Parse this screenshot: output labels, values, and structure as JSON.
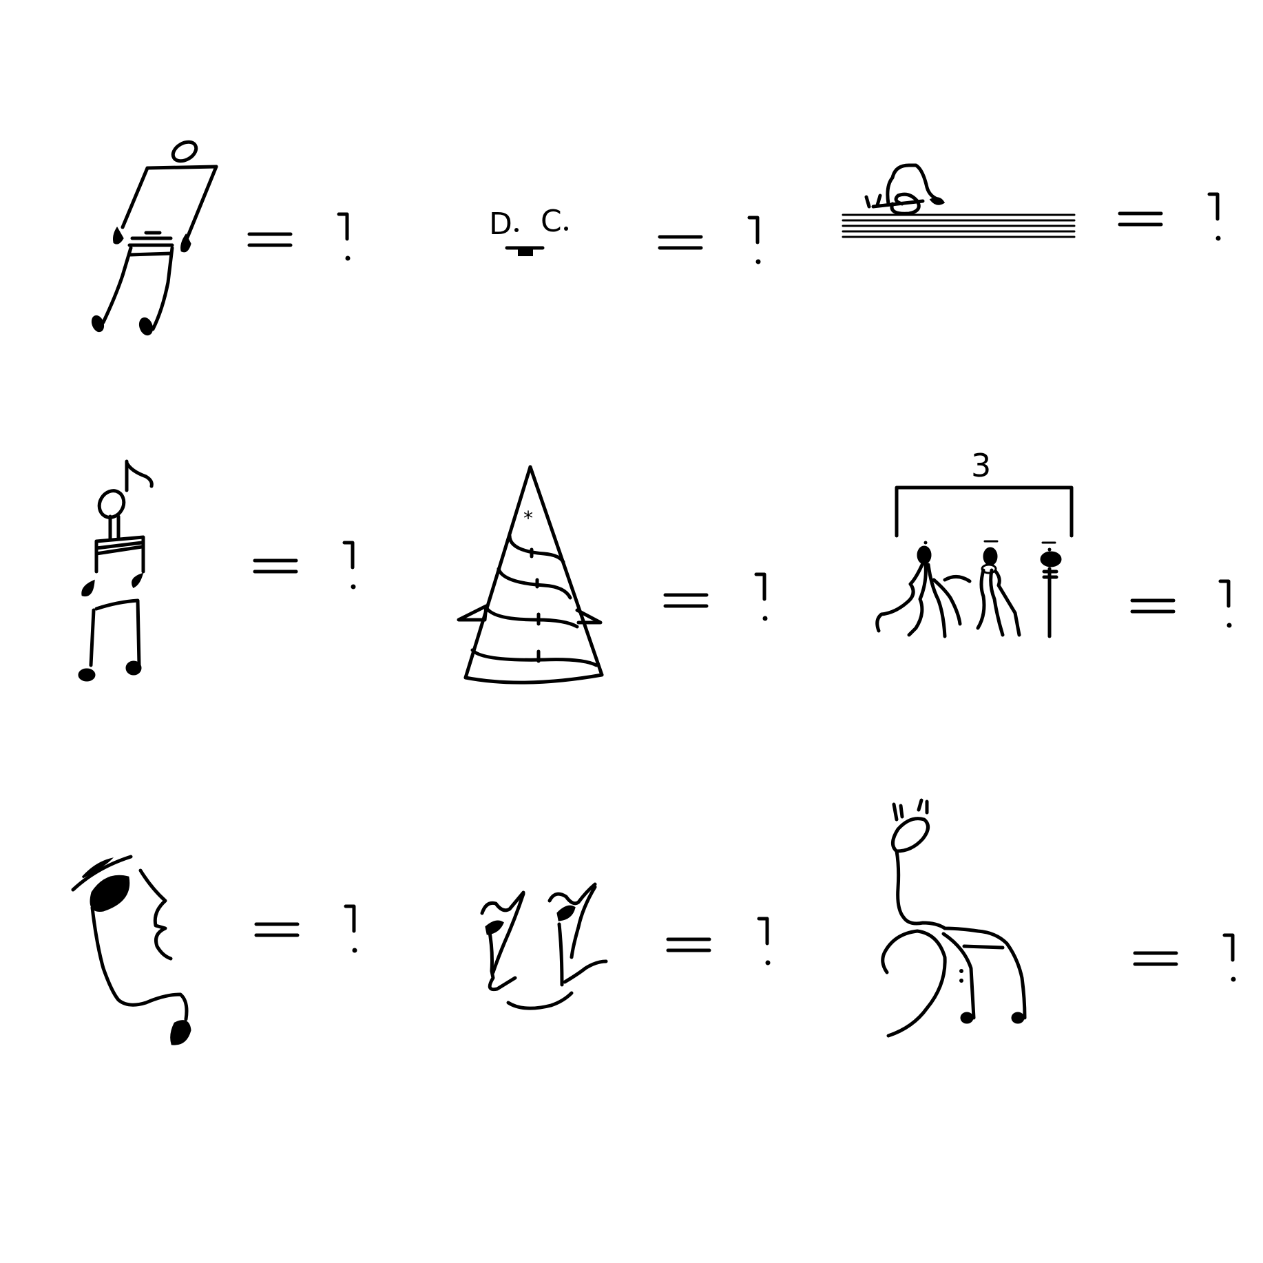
{
  "puzzle": {
    "equals_sign": "=",
    "question_mark": "?",
    "tuplet_number": "3",
    "dc_letters": [
      "D",
      "C"
    ],
    "items": [
      {
        "id": "sixteenth-notes-figure",
        "row": 1,
        "col": 1
      },
      {
        "id": "da-capo-face",
        "row": 1,
        "col": 2
      },
      {
        "id": "staff-snail",
        "row": 1,
        "col": 3
      },
      {
        "id": "note-figure-with-flag",
        "row": 2,
        "col": 1
      },
      {
        "id": "party-hat-tree",
        "row": 2,
        "col": 2
      },
      {
        "id": "triplet-bracket-creatures",
        "row": 2,
        "col": 3
      },
      {
        "id": "hat-face-profile",
        "row": 3,
        "col": 1
      },
      {
        "id": "eighth-note-faces",
        "row": 3,
        "col": 2
      },
      {
        "id": "bass-clef-giraffe",
        "row": 3,
        "col": 3
      }
    ]
  }
}
